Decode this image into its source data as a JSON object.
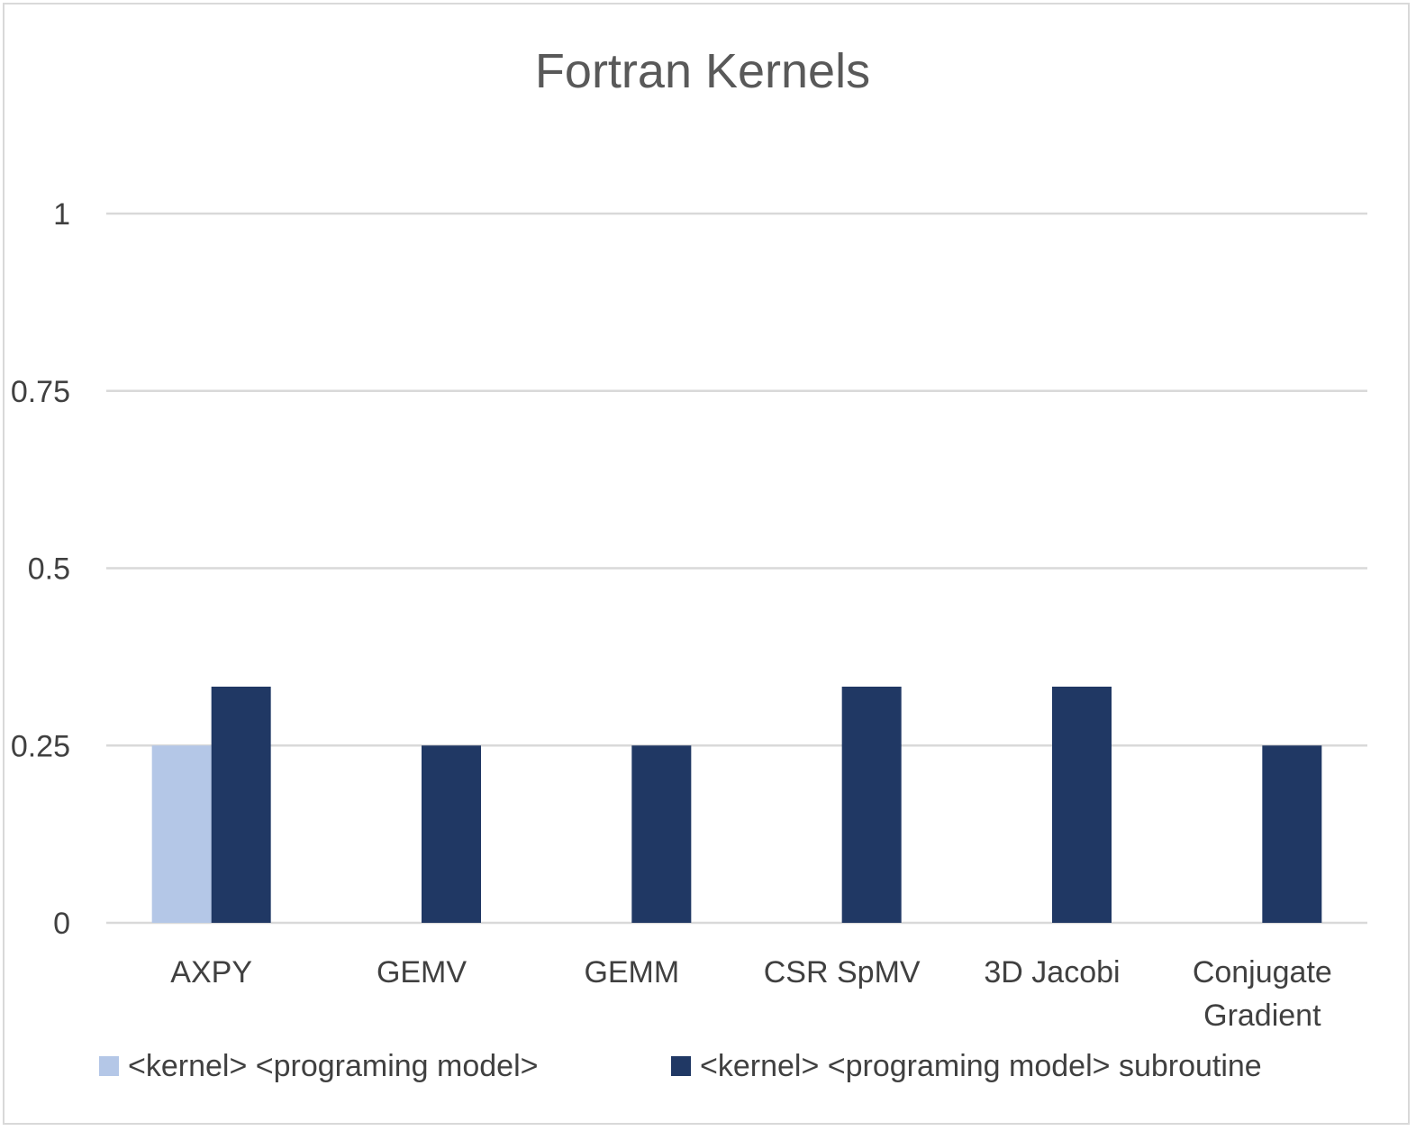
{
  "chart_data": {
    "type": "bar",
    "title": "Fortran Kernels",
    "categories": [
      "AXPY",
      "GEMV",
      "GEMM",
      "CSR SpMV",
      "3D Jacobi",
      "Conjugate Gradient"
    ],
    "series": [
      {
        "name": "<kernel> <programing model>",
        "color": "#b4c7e7",
        "values": [
          0.25,
          0,
          0,
          0,
          0,
          0
        ]
      },
      {
        "name": "<kernel> <programing model> subroutine",
        "color": "#203864",
        "values": [
          0.333,
          0.25,
          0.25,
          0.333,
          0.333,
          0.25
        ]
      }
    ],
    "yticks": [
      "0",
      "0.25",
      "0.5",
      "0.75",
      "1"
    ],
    "ylim": [
      0,
      1
    ],
    "xlabel": "",
    "ylabel": "",
    "grid": true,
    "legend_position": "bottom"
  }
}
